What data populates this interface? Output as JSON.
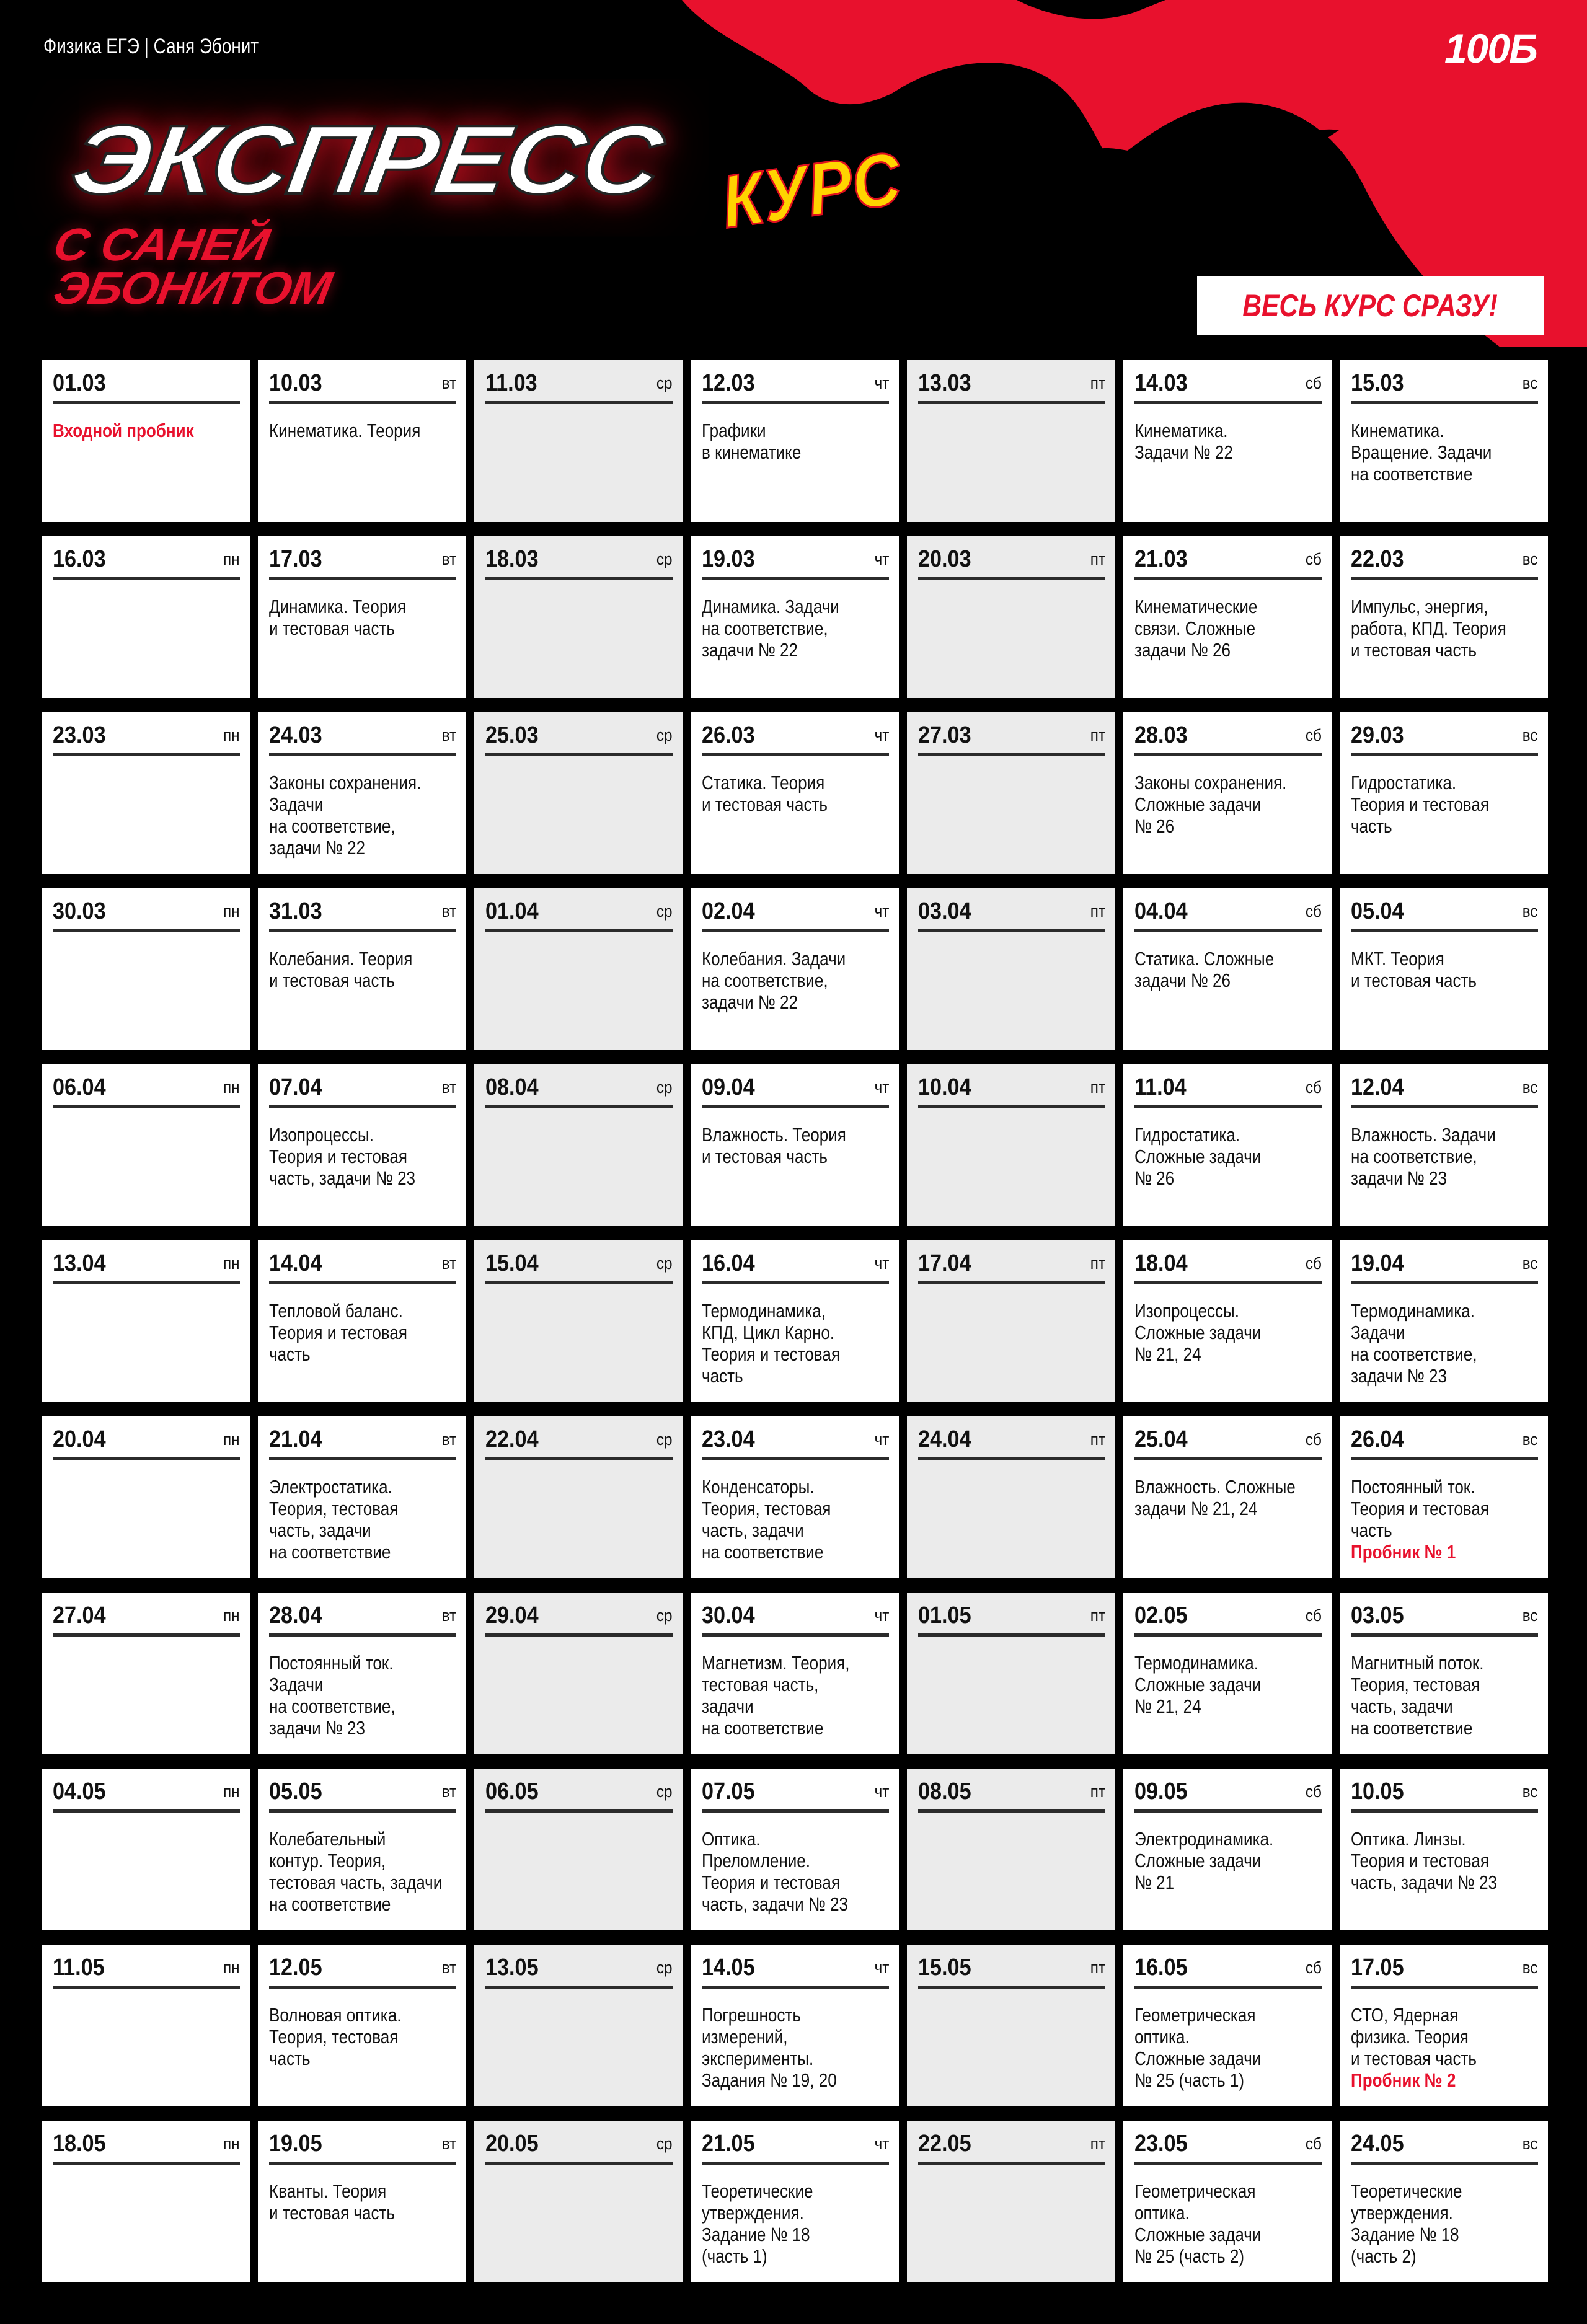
{
  "header": {
    "brand": "Физика ЕГЭ | Саня Эбонит",
    "logo": "100Б",
    "title_main": "ЭКСПРЕСС",
    "title_kurs": "КУРС",
    "title_sub_1": "С САНЕЙ",
    "title_sub_2": "ЭБОНИТОМ",
    "cta_label": "ВЕСЬ КУРС СРАЗУ!"
  },
  "colors": {
    "accent_red": "#e8112d",
    "yellow": "#ffd400",
    "background": "#000000",
    "cell": "#ffffff",
    "cell_grey": "#ebebeb"
  },
  "schedule": [
    [
      {
        "date": "01.03",
        "dow": "",
        "text": "",
        "note": "Входной пробник"
      },
      {
        "date": "10.03",
        "dow": "вт",
        "text": "Кинематика. Теория"
      },
      {
        "date": "11.03",
        "dow": "ср",
        "text": ""
      },
      {
        "date": "12.03",
        "dow": "чт",
        "text": "Графики\nв кинематике"
      },
      {
        "date": "13.03",
        "dow": "пт",
        "text": ""
      },
      {
        "date": "14.03",
        "dow": "сб",
        "text": "Кинематика.\nЗадачи № 22"
      },
      {
        "date": "15.03",
        "dow": "вс",
        "text": "Кинематика.\nВращение. Задачи\nна соответствие"
      }
    ],
    [
      {
        "date": "16.03",
        "dow": "пн",
        "text": ""
      },
      {
        "date": "17.03",
        "dow": "вт",
        "text": "Динамика. Теория\nи тестовая часть"
      },
      {
        "date": "18.03",
        "dow": "ср",
        "text": ""
      },
      {
        "date": "19.03",
        "dow": "чт",
        "text": "Динамика. Задачи\nна соответствие,\nзадачи № 22"
      },
      {
        "date": "20.03",
        "dow": "пт",
        "text": ""
      },
      {
        "date": "21.03",
        "dow": "сб",
        "text": "Кинематические\nсвязи. Сложные\nзадачи № 26"
      },
      {
        "date": "22.03",
        "dow": "вс",
        "text": "Импульс, энергия,\nработа, КПД. Теория\nи тестовая часть"
      }
    ],
    [
      {
        "date": "23.03",
        "dow": "пн",
        "text": ""
      },
      {
        "date": "24.03",
        "dow": "вт",
        "text": "Законы сохранения.\nЗадачи\nна соответствие,\nзадачи № 22"
      },
      {
        "date": "25.03",
        "dow": "ср",
        "text": ""
      },
      {
        "date": "26.03",
        "dow": "чт",
        "text": "Статика. Теория\nи тестовая часть"
      },
      {
        "date": "27.03",
        "dow": "пт",
        "text": ""
      },
      {
        "date": "28.03",
        "dow": "сб",
        "text": "Законы сохранения.\nСложные задачи\n№ 26"
      },
      {
        "date": "29.03",
        "dow": "вс",
        "text": "Гидростатика.\nТеория и тестовая\nчасть"
      }
    ],
    [
      {
        "date": "30.03",
        "dow": "пн",
        "text": ""
      },
      {
        "date": "31.03",
        "dow": "вт",
        "text": "Колебания. Теория\nи тестовая часть"
      },
      {
        "date": "01.04",
        "dow": "ср",
        "text": ""
      },
      {
        "date": "02.04",
        "dow": "чт",
        "text": "Колебания. Задачи\nна соответствие,\nзадачи № 22"
      },
      {
        "date": "03.04",
        "dow": "пт",
        "text": ""
      },
      {
        "date": "04.04",
        "dow": "сб",
        "text": "Статика. Сложные\nзадачи № 26"
      },
      {
        "date": "05.04",
        "dow": "вс",
        "text": "МКТ. Теория\nи тестовая часть"
      }
    ],
    [
      {
        "date": "06.04",
        "dow": "пн",
        "text": ""
      },
      {
        "date": "07.04",
        "dow": "вт",
        "text": "Изопроцессы.\nТеория и тестовая\nчасть, задачи № 23"
      },
      {
        "date": "08.04",
        "dow": "ср",
        "text": ""
      },
      {
        "date": "09.04",
        "dow": "чт",
        "text": "Влажность. Теория\nи тестовая часть"
      },
      {
        "date": "10.04",
        "dow": "пт",
        "text": ""
      },
      {
        "date": "11.04",
        "dow": "сб",
        "text": "Гидростатика.\nСложные задачи\n№ 26"
      },
      {
        "date": "12.04",
        "dow": "вс",
        "text": "Влажность. Задачи\nна соответствие,\nзадачи № 23"
      }
    ],
    [
      {
        "date": "13.04",
        "dow": "пн",
        "text": ""
      },
      {
        "date": "14.04",
        "dow": "вт",
        "text": "Тепловой баланс.\nТеория и тестовая\nчасть"
      },
      {
        "date": "15.04",
        "dow": "ср",
        "text": ""
      },
      {
        "date": "16.04",
        "dow": "чт",
        "text": "Термодинамика,\nКПД, Цикл Карно.\nТеория и тестовая\nчасть"
      },
      {
        "date": "17.04",
        "dow": "пт",
        "text": ""
      },
      {
        "date": "18.04",
        "dow": "сб",
        "text": "Изопроцессы.\nСложные задачи\n№ 21, 24"
      },
      {
        "date": "19.04",
        "dow": "вс",
        "text": "Термодинамика.\nЗадачи\nна соответствие,\nзадачи № 23"
      }
    ],
    [
      {
        "date": "20.04",
        "dow": "пн",
        "text": ""
      },
      {
        "date": "21.04",
        "dow": "вт",
        "text": "Электростатика.\nТеория, тестовая\nчасть, задачи\nна соответствие"
      },
      {
        "date": "22.04",
        "dow": "ср",
        "text": ""
      },
      {
        "date": "23.04",
        "dow": "чт",
        "text": "Конденсаторы.\nТеория, тестовая\nчасть, задачи\nна соответствие"
      },
      {
        "date": "24.04",
        "dow": "пт",
        "text": ""
      },
      {
        "date": "25.04",
        "dow": "сб",
        "text": "Влажность. Сложные\nзадачи № 21, 24"
      },
      {
        "date": "26.04",
        "dow": "вс",
        "text": "Постоянный ток.\nТеория и тестовая\nчасть",
        "note": "Пробник № 1"
      }
    ],
    [
      {
        "date": "27.04",
        "dow": "пн",
        "text": ""
      },
      {
        "date": "28.04",
        "dow": "вт",
        "text": "Постоянный ток.\nЗадачи\nна соответствие,\nзадачи № 23"
      },
      {
        "date": "29.04",
        "dow": "ср",
        "text": ""
      },
      {
        "date": "30.04",
        "dow": "чт",
        "text": "Магнетизм. Теория,\nтестовая часть,\nзадачи\nна соответствие"
      },
      {
        "date": "01.05",
        "dow": "пт",
        "text": ""
      },
      {
        "date": "02.05",
        "dow": "сб",
        "text": "Термодинамика.\nСложные задачи\n№ 21, 24"
      },
      {
        "date": "03.05",
        "dow": "вс",
        "text": "Магнитный поток.\nТеория, тестовая\nчасть, задачи\nна соответствие"
      }
    ],
    [
      {
        "date": "04.05",
        "dow": "пн",
        "text": ""
      },
      {
        "date": "05.05",
        "dow": "вт",
        "text": "Колебательный\nконтур. Теория,\nтестовая часть, задачи\nна соответствие"
      },
      {
        "date": "06.05",
        "dow": "ср",
        "text": ""
      },
      {
        "date": "07.05",
        "dow": "чт",
        "text": "Оптика.\nПреломление.\nТеория и тестовая\nчасть, задачи № 23"
      },
      {
        "date": "08.05",
        "dow": "пт",
        "text": ""
      },
      {
        "date": "09.05",
        "dow": "сб",
        "text": "Электродинамика.\nСложные задачи\n№ 21"
      },
      {
        "date": "10.05",
        "dow": "вс",
        "text": "Оптика. Линзы.\nТеория и тестовая\nчасть, задачи № 23"
      }
    ],
    [
      {
        "date": "11.05",
        "dow": "пн",
        "text": ""
      },
      {
        "date": "12.05",
        "dow": "вт",
        "text": "Волновая оптика.\nТеория, тестовая\nчасть"
      },
      {
        "date": "13.05",
        "dow": "ср",
        "text": ""
      },
      {
        "date": "14.05",
        "dow": "чт",
        "text": "Погрешность\nизмерений,\nэксперименты.\nЗадания № 19, 20"
      },
      {
        "date": "15.05",
        "dow": "пт",
        "text": ""
      },
      {
        "date": "16.05",
        "dow": "сб",
        "text": "Геометрическая\nоптика.\nСложные задачи\n№ 25 (часть 1)"
      },
      {
        "date": "17.05",
        "dow": "вс",
        "text": "СТО, Ядерная\nфизика. Теория\nи тестовая часть",
        "note": "Пробник № 2"
      }
    ],
    [
      {
        "date": "18.05",
        "dow": "пн",
        "text": ""
      },
      {
        "date": "19.05",
        "dow": "вт",
        "text": "Кванты. Теория\nи тестовая часть"
      },
      {
        "date": "20.05",
        "dow": "ср",
        "text": ""
      },
      {
        "date": "21.05",
        "dow": "чт",
        "text": "Теоретические\nутверждения.\nЗадание № 18\n(часть 1)"
      },
      {
        "date": "22.05",
        "dow": "пт",
        "text": ""
      },
      {
        "date": "23.05",
        "dow": "сб",
        "text": "Геометрическая\nоптика.\nСложные задачи\n№ 25 (часть 2)"
      },
      {
        "date": "24.05",
        "dow": "вс",
        "text": "Теоретические\nутверждения.\nЗадание № 18\n(часть 2)"
      }
    ]
  ]
}
